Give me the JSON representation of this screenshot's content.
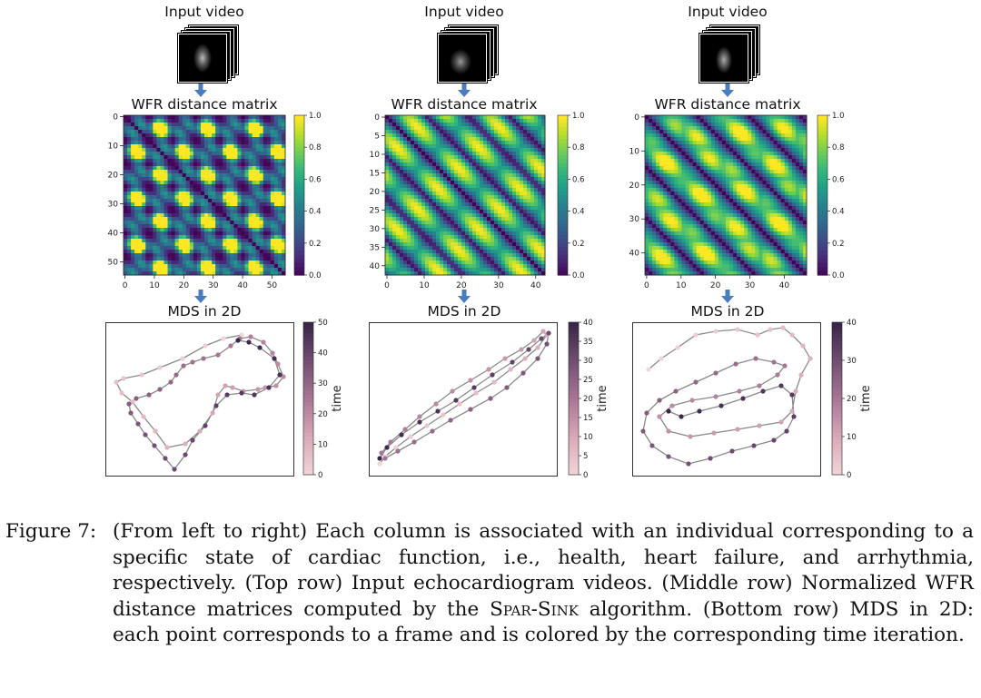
{
  "panels": [
    {
      "input_label": "Input video",
      "matrix_title": "WFR distance matrix",
      "mds_title": "MDS in 2D",
      "matrix_ticks": [
        "0",
        "10",
        "20",
        "30",
        "40",
        "50"
      ],
      "colorbar_ticks": [
        "1.0",
        "0.8",
        "0.6",
        "0.4",
        "0.2",
        "0.0"
      ],
      "mds_ticks": [
        "50",
        "40",
        "30",
        "20",
        "10",
        "0"
      ],
      "mds_label": "time"
    },
    {
      "input_label": "Input video",
      "matrix_title": "WFR distance matrix",
      "mds_title": "MDS in 2D",
      "matrix_y_ticks": [
        "0",
        "5",
        "10",
        "15",
        "20",
        "25",
        "30",
        "35",
        "40"
      ],
      "matrix_x_ticks": [
        "0",
        "10",
        "20",
        "30",
        "40"
      ],
      "colorbar_ticks": [
        "1.0",
        "0.8",
        "0.6",
        "0.4",
        "0.2",
        "0.0"
      ],
      "mds_ticks": [
        "40",
        "35",
        "30",
        "25",
        "20",
        "15",
        "10",
        "5",
        "0"
      ],
      "mds_label": "time"
    },
    {
      "input_label": "Input video",
      "matrix_title": "WFR distance matrix",
      "mds_title": "MDS in 2D",
      "matrix_y_ticks": [
        "0",
        "10",
        "20",
        "30",
        "40"
      ],
      "matrix_x_ticks": [
        "0",
        "10",
        "20",
        "30",
        "40"
      ],
      "colorbar_ticks": [
        "1.0",
        "0.8",
        "0.6",
        "0.4",
        "0.2",
        "0.0"
      ],
      "mds_ticks": [
        "40",
        "30",
        "20",
        "10",
        "0"
      ],
      "mds_label": "time"
    }
  ],
  "caption": {
    "label": "Figure 7:",
    "text_1": "(From left to right) Each column is associated with an individual corresponding to a specific state of cardiac function, i.e., health, heart failure, and arrhythmia, respectively. (Top row) Input echocardiogram videos. (Middle row) Normalized WFR distance matrices computed by the ",
    "algorithm": "Spar-Sink",
    "text_2": " algorithm. (Bottom row) MDS in 2D: each point corresponds to a frame and is colored by the corresponding time iteration."
  },
  "colors": {
    "arrow": "#4a7cc0",
    "viridis_low": "#440154",
    "viridis_high": "#fde725",
    "time_low": "#f2d0d4",
    "time_high": "#2b1a3a"
  }
}
